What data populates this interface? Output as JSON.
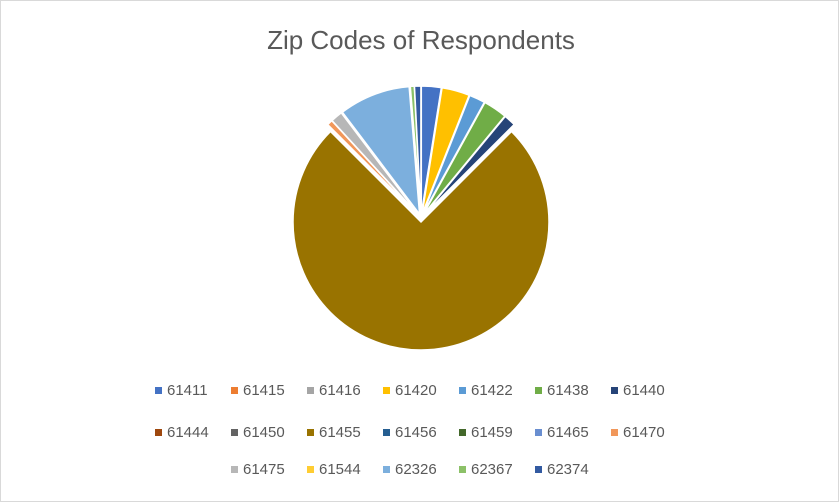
{
  "chart_data": {
    "type": "pie",
    "title": "Zip Codes of Respondents",
    "categories": [
      "61411",
      "61415",
      "61416",
      "61420",
      "61422",
      "61438",
      "61440",
      "61444",
      "61450",
      "61455",
      "61456",
      "61459",
      "61465",
      "61470",
      "61475",
      "61544",
      "62326",
      "62367",
      "62374"
    ],
    "values": [
      2.5,
      0,
      0,
      3.5,
      2,
      3,
      1.5,
      0,
      0,
      75,
      0,
      0,
      0,
      0.7,
      1.5,
      0,
      9,
      0.5,
      0.8
    ],
    "colors": [
      "#4472c4",
      "#ed7d31",
      "#a5a5a5",
      "#ffc000",
      "#5b9bd5",
      "#70ad47",
      "#264478",
      "#9e480e",
      "#636363",
      "#997300",
      "#255e91",
      "#43682b",
      "#698ed0",
      "#f1975a",
      "#b7b7b7",
      "#ffcd33",
      "#7cafdd",
      "#8cc168",
      "#335aa1"
    ],
    "legend": "bottom"
  }
}
